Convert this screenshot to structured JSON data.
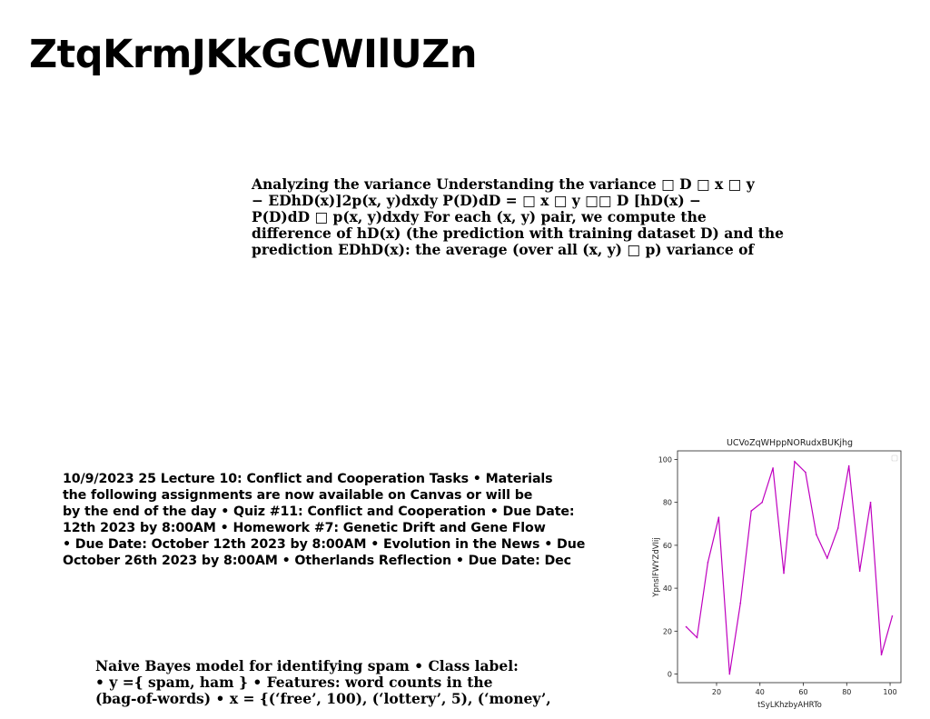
{
  "page": {
    "title": "ZtqKrmJKkGCWIlUZn"
  },
  "variance_block": {
    "lines": [
      "Analyzing the variance Understanding the variance □ D □ x □ y",
      "− EDhD(x)]2p(x, y)dxdy P(D)dD = □ x □ y □□ D [hD(x) −",
      "P(D)dD □ p(x, y)dxdy For each (x, y) pair, we compute the",
      "difference of hD(x) (the prediction with training dataset D) and the",
      "prediction EDhD(x): the average (over all (x, y) □ p) variance of"
    ]
  },
  "lecture_block": {
    "lines": [
      "10/9/2023 25 Lecture 10: Conflict and Cooperation Tasks • Materials",
      "the following assignments are now available on Canvas or will be",
      "by the end of the day • Quiz #11: Conflict and Cooperation • Due Date:",
      "12th 2023 by 8:00AM • Homework #7: Genetic Drift and Gene Flow",
      "• Due Date: October 12th 2023 by 8:00AM • Evolution in the News • Due",
      "October 26th 2023 by 8:00AM • Otherlands Reflection • Due Date: Dec"
    ]
  },
  "bayes_block": {
    "lines": [
      "Naive Bayes model for identifying spam • Class label:",
      "• y ={ spam, ham } • Features: word counts in the",
      "(bag-of-words) • x = {(‘free’, 100), (‘lottery’, 5), (‘money’,"
    ]
  },
  "chart_data": {
    "type": "line",
    "title": "UCVoZqWHppNORudxBUKjhg",
    "xlabel": "tSyLKhzbyAHRTo",
    "ylabel": "YpnslFWYZdVIij",
    "x": [
      6,
      11,
      16,
      21,
      26,
      31,
      36,
      41,
      46,
      51,
      56,
      61,
      66,
      71,
      76,
      81,
      86,
      91,
      96,
      101
    ],
    "series": [
      {
        "values": [
          22,
          17,
          52,
          73,
          0,
          33,
          76,
          80,
          96,
          47,
          99,
          94,
          65,
          54,
          68,
          97,
          48,
          80,
          9,
          27
        ],
        "color": "#bf00bf"
      }
    ],
    "xlim": [
      2,
      105
    ],
    "ylim": [
      -4,
      104
    ],
    "xticks": [
      20,
      40,
      60,
      80,
      100
    ],
    "yticks": [
      0,
      20,
      40,
      60,
      80,
      100
    ],
    "grid": false,
    "legend": "top-right"
  }
}
